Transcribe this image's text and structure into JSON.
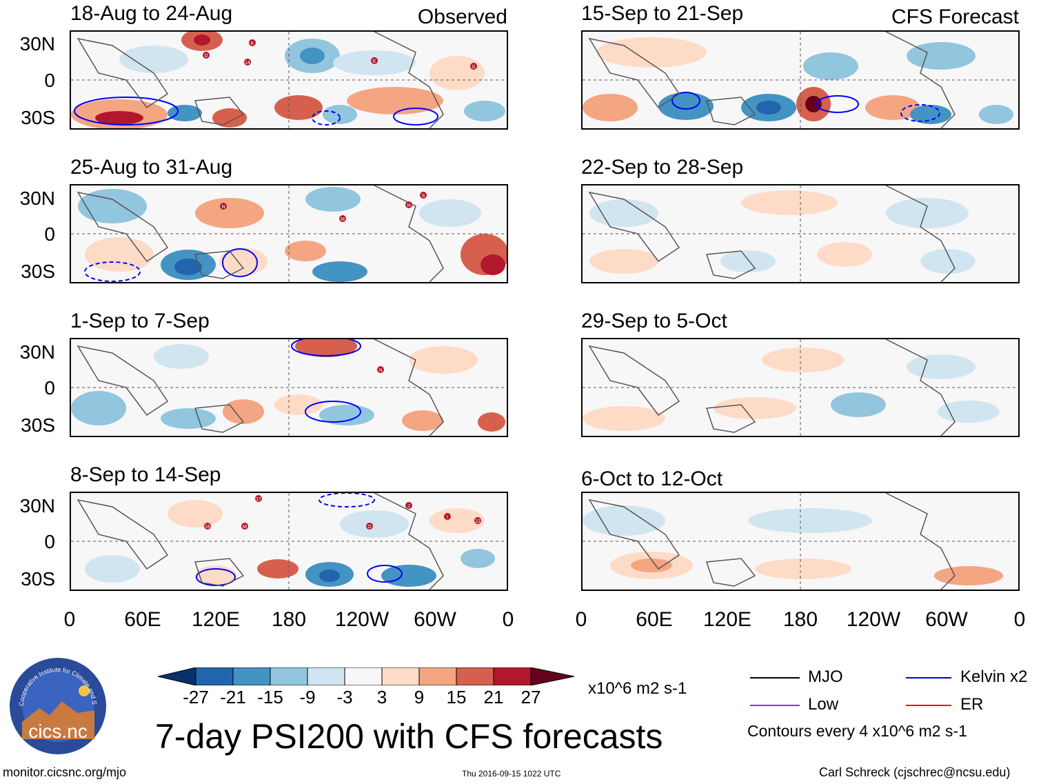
{
  "lat_labels": [
    "30N",
    "0",
    "30S"
  ],
  "lon_labels": [
    "0",
    "60E",
    "120E",
    "180",
    "120W",
    "60W",
    "0"
  ],
  "observed_tag": "Observed",
  "forecast_tag": "CFS Forecast",
  "panels": {
    "obs": [
      {
        "title": "18-Aug to 24-Aug",
        "storms": [
          "K",
          "D",
          "14",
          "E",
          "G"
        ]
      },
      {
        "title": "25-Aug to 31-Aug",
        "storms": [
          "N",
          "M",
          "H",
          "S"
        ]
      },
      {
        "title": "1-Sep to 7-Sep",
        "storms": [
          "N"
        ]
      },
      {
        "title": "8-Sep to 14-Sep",
        "storms": [
          "17",
          "16",
          "M",
          "O",
          "J",
          "I",
          "12"
        ]
      }
    ],
    "fcst": [
      {
        "title": "15-Sep to 21-Sep"
      },
      {
        "title": "22-Sep to 28-Sep"
      },
      {
        "title": "29-Sep to 5-Oct"
      },
      {
        "title": "6-Oct to 12-Oct"
      }
    ]
  },
  "colorbar": {
    "labels": [
      "-27",
      "-21",
      "-15",
      "-9",
      "-3",
      "3",
      "9",
      "15",
      "21",
      "27"
    ],
    "colors": [
      "#08306b",
      "#2166ac",
      "#4393c3",
      "#92c5de",
      "#d1e5f0",
      "#f7f7f7",
      "#fddbc7",
      "#f4a582",
      "#d6604d",
      "#b2182b",
      "#67001f"
    ],
    "units": "x10^6 m2 s-1"
  },
  "legend": {
    "items": [
      {
        "label": "MJO",
        "color": "#000000"
      },
      {
        "label": "Kelvin x2",
        "color": "#0000ff"
      },
      {
        "label": "Low",
        "color": "#a020f0"
      },
      {
        "label": "ER",
        "color": "#ff0000"
      }
    ],
    "contour_note": "Contours every 4 x10^6 m2 s-1"
  },
  "logo": {
    "text": "cics.nc",
    "ring_text": "Cooperative Institute for Climate and Satellites"
  },
  "main_title": "7-day PSI200 with CFS forecasts",
  "footer": {
    "url": "monitor.cicsnc.org/mjo",
    "timestamp": "Thu 2016-09-15 1022 UTC",
    "credit": "Carl Schreck (cjschrec@ncsu.edu)"
  }
}
